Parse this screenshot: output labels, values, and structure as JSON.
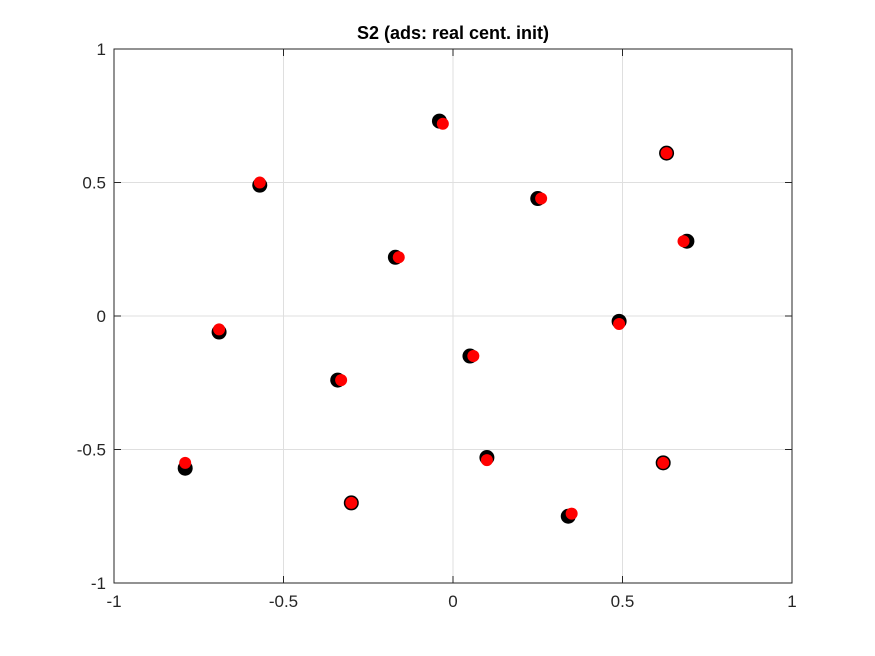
{
  "chart_data": {
    "type": "scatter",
    "title": "S2 (ads: real cent. init)",
    "xlabel": "",
    "ylabel": "",
    "xlim": [
      -1,
      1
    ],
    "ylim": [
      -1,
      1
    ],
    "x_ticks": [
      -1,
      -0.5,
      0,
      0.5,
      1
    ],
    "y_ticks": [
      -1,
      -0.5,
      0,
      0.5,
      1
    ],
    "x_tick_labels": [
      "-1",
      "-0.5",
      "0",
      "0.5",
      "1"
    ],
    "y_tick_labels": [
      "-1",
      "-0.5",
      "0",
      "0.5",
      "1"
    ],
    "grid": true,
    "legend": "none",
    "series": [
      {
        "color": "#000000",
        "points": [
          {
            "x": -0.04,
            "y": 0.73
          },
          {
            "x": 0.63,
            "y": 0.61
          },
          {
            "x": -0.57,
            "y": 0.49
          },
          {
            "x": 0.25,
            "y": 0.44
          },
          {
            "x": 0.69,
            "y": 0.28
          },
          {
            "x": -0.17,
            "y": 0.22
          },
          {
            "x": 0.49,
            "y": -0.02
          },
          {
            "x": -0.69,
            "y": -0.06
          },
          {
            "x": 0.05,
            "y": -0.15
          },
          {
            "x": -0.34,
            "y": -0.24
          },
          {
            "x": 0.1,
            "y": -0.53
          },
          {
            "x": -0.79,
            "y": -0.57
          },
          {
            "x": 0.62,
            "y": -0.55
          },
          {
            "x": -0.3,
            "y": -0.7
          },
          {
            "x": 0.34,
            "y": -0.75
          }
        ]
      },
      {
        "color": "#ff0000",
        "points": [
          {
            "x": -0.03,
            "y": 0.72
          },
          {
            "x": 0.63,
            "y": 0.61
          },
          {
            "x": -0.57,
            "y": 0.5
          },
          {
            "x": 0.26,
            "y": 0.44
          },
          {
            "x": 0.68,
            "y": 0.28
          },
          {
            "x": -0.16,
            "y": 0.22
          },
          {
            "x": 0.49,
            "y": -0.03
          },
          {
            "x": -0.69,
            "y": -0.05
          },
          {
            "x": 0.06,
            "y": -0.15
          },
          {
            "x": -0.33,
            "y": -0.24
          },
          {
            "x": 0.1,
            "y": -0.54
          },
          {
            "x": -0.79,
            "y": -0.55
          },
          {
            "x": 0.62,
            "y": -0.55
          },
          {
            "x": -0.3,
            "y": -0.7
          },
          {
            "x": 0.35,
            "y": -0.74
          }
        ]
      }
    ]
  }
}
